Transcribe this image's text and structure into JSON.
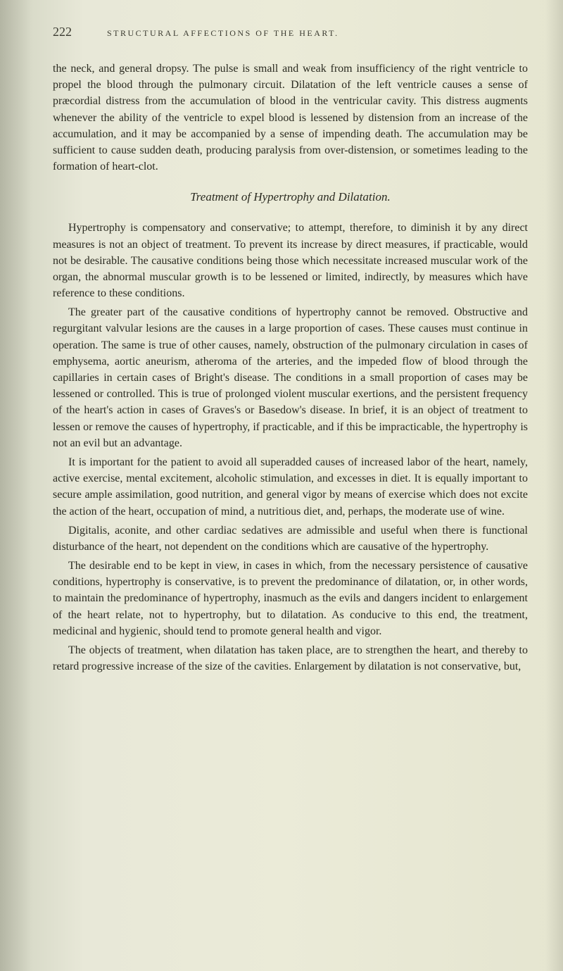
{
  "header": {
    "page_number": "222",
    "title": "STRUCTURAL AFFECTIONS OF THE HEART."
  },
  "intro_paragraph": "the neck, and general dropsy. The pulse is small and weak from insufficiency of the right ventricle to propel the blood through the pulmonary circuit. Dilatation of the left ventricle causes a sense of præcordial distress from the accumulation of blood in the ventricular cavity. This distress augments whenever the ability of the ventricle to expel blood is lessened by distension from an increase of the accumulation, and it may be accompanied by a sense of impending death. The accumulation may be sufficient to cause sudden death, producing paralysis from over-distension, or sometimes leading to the formation of heart-clot.",
  "section_heading": "Treatment of Hypertrophy and Dilatation.",
  "paragraphs": {
    "p1": "Hypertrophy is compensatory and conservative; to attempt, therefore, to diminish it by any direct measures is not an object of treatment. To prevent its increase by direct measures, if practicable, would not be desirable. The causative conditions being those which necessitate increased muscular work of the organ, the abnormal muscular growth is to be lessened or limited, indirectly, by measures which have reference to these conditions.",
    "p2": "The greater part of the causative conditions of hypertrophy cannot be removed. Obstructive and regurgitant valvular lesions are the causes in a large proportion of cases. These causes must continue in operation. The same is true of other causes, namely, obstruction of the pulmonary circulation in cases of emphysema, aortic aneurism, atheroma of the arteries, and the impeded flow of blood through the capillaries in certain cases of Bright's disease. The conditions in a small proportion of cases may be lessened or controlled. This is true of prolonged violent muscular exertions, and the persistent frequency of the heart's action in cases of Graves's or Basedow's disease. In brief, it is an object of treatment to lessen or remove the causes of hypertrophy, if practicable, and if this be impracticable, the hypertrophy is not an evil but an advantage.",
    "p3": "It is important for the patient to avoid all superadded causes of increased labor of the heart, namely, active exercise, mental excitement, alcoholic stimulation, and excesses in diet. It is equally important to secure ample assimilation, good nutrition, and general vigor by means of exercise which does not excite the action of the heart, occupation of mind, a nutritious diet, and, perhaps, the moderate use of wine.",
    "p4": "Digitalis, aconite, and other cardiac sedatives are admissible and useful when there is functional disturbance of the heart, not dependent on the conditions which are causative of the hypertrophy.",
    "p5": "The desirable end to be kept in view, in cases in which, from the necessary persistence of causative conditions, hypertrophy is conservative, is to prevent the predominance of dilatation, or, in other words, to maintain the predominance of hypertrophy, inasmuch as the evils and dangers incident to enlargement of the heart relate, not to hypertrophy, but to dilatation. As conducive to this end, the treatment, medicinal and hygienic, should tend to promote general health and vigor.",
    "p6": "The objects of treatment, when dilatation has taken place, are to strengthen the heart, and thereby to retard progressive increase of the size of the cavities. Enlargement by dilatation is not conservative, but,"
  }
}
